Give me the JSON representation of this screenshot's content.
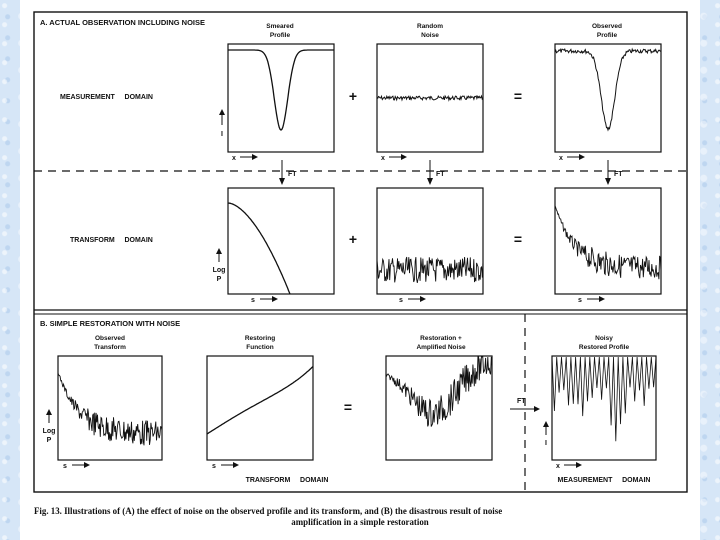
{
  "section_a": {
    "title": "A.  ACTUAL OBSERVATION INCLUDING NOISE",
    "measurement_domain": "MEASUREMENT     DOMAIN",
    "transform_domain": "TRANSFORM     DOMAIN",
    "smeared_title_1": "Smeared",
    "smeared_title_2": "Profile",
    "noise_title_1": "Random",
    "noise_title_2": "Noise",
    "observed_title_1": "Observed",
    "observed_title_2": "Profile",
    "plus": "+",
    "equals": "=",
    "ft": "FT",
    "x_axis": "x",
    "s_axis": "s",
    "i_axis": "I",
    "log_label": "Log",
    "p_label": "P"
  },
  "section_b": {
    "title": "B.  SIMPLE RESTORATION WITH NOISE",
    "observed_transform_1": "Observed",
    "observed_transform_2": "Transform",
    "restoring_function_1": "Restoring",
    "restoring_function_2": "Function",
    "restoration_1": "Restoration +",
    "restoration_2": "Amplified Noise",
    "noisy_restored_1": "Noisy",
    "noisy_restored_2": "Restored Profile",
    "equals": "=",
    "ft": "FT",
    "transform_domain": "TRANSFORM     DOMAIN",
    "measurement_domain": "MEASUREMENT     DOMAIN",
    "s_axis": "s",
    "x_axis": "x",
    "i_axis": "I",
    "log_label": "Log",
    "p_label": "P"
  },
  "caption": {
    "line1": "Fig. 13. Illustrations of (A) the effect of noise on the observed profile and its transform, and (B) the disastrous result of noise",
    "line2": "amplification in a simple restoration"
  }
}
